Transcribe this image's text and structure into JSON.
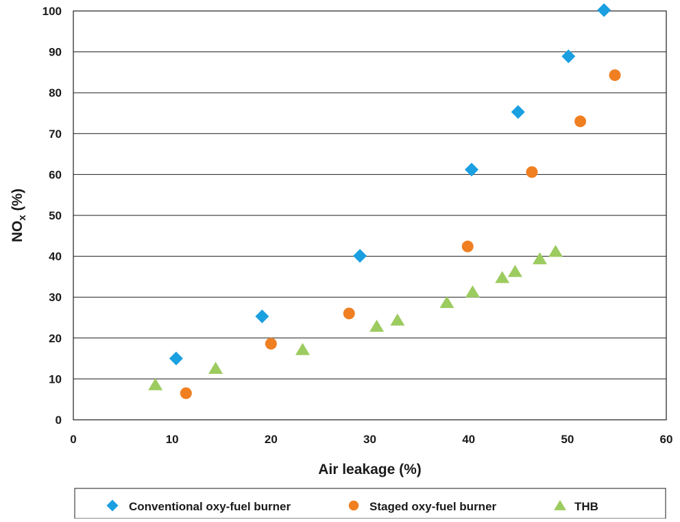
{
  "chart_data": {
    "type": "scatter",
    "title": "",
    "xlabel": "Air leakage (%)",
    "ylabel": "NOx (%)",
    "ylabel_parts": [
      "NO",
      "x",
      " (%)"
    ],
    "xlim": [
      0,
      60
    ],
    "ylim": [
      0,
      100
    ],
    "xticks": [
      0,
      10,
      20,
      30,
      40,
      50,
      60
    ],
    "yticks": [
      0,
      10,
      20,
      30,
      40,
      50,
      60,
      70,
      80,
      90,
      100
    ],
    "grid": "horizontal",
    "legend_position": "bottom",
    "series": [
      {
        "name": "Conventional oxy-fuel burner",
        "marker": "diamond",
        "color": "#1a9fe0",
        "x": [
          10.4,
          19.1,
          29.0,
          40.3,
          45.0,
          50.1,
          53.7
        ],
        "y": [
          15.0,
          25.3,
          40.1,
          61.2,
          75.3,
          88.9,
          100.2
        ]
      },
      {
        "name": "Staged oxy-fuel burner",
        "marker": "circle",
        "color": "#f07f22",
        "x": [
          11.4,
          20.0,
          27.9,
          39.9,
          46.4,
          51.3,
          54.8
        ],
        "y": [
          6.5,
          18.6,
          26.0,
          42.4,
          60.6,
          73.0,
          84.3
        ]
      },
      {
        "name": "THB",
        "marker": "triangle",
        "color": "#9ccb5f",
        "x": [
          8.3,
          14.4,
          23.2,
          30.7,
          32.8,
          37.8,
          40.4,
          43.4,
          44.7,
          47.2,
          48.8
        ],
        "y": [
          8.6,
          12.6,
          17.2,
          22.9,
          24.4,
          28.7,
          31.3,
          34.8,
          36.3,
          39.4,
          41.2
        ]
      }
    ]
  }
}
